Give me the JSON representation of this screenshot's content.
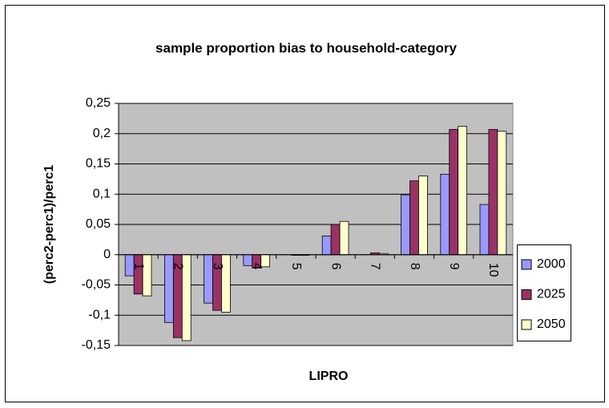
{
  "chart_data": {
    "type": "bar",
    "title": "sample proportion bias to household-category",
    "x_label": "LIPRO",
    "y_label": "(perc2-perc1)/perc1",
    "categories": [
      "1",
      "2",
      "3",
      "4",
      "5",
      "6",
      "7",
      "8",
      "9",
      "10"
    ],
    "series": [
      {
        "name": "2000",
        "color": "#9999ff",
        "values": [
          -0.035,
          -0.112,
          -0.08,
          -0.018,
          0,
          0.031,
          0,
          0.099,
          0.133,
          0.083
        ]
      },
      {
        "name": "2025",
        "color": "#993366",
        "values": [
          -0.065,
          -0.137,
          -0.092,
          -0.022,
          -0.001,
          0.05,
          0.003,
          0.122,
          0.207,
          0.207
        ]
      },
      {
        "name": "2050",
        "color": "#ffffcc",
        "values": [
          -0.068,
          -0.142,
          -0.095,
          -0.02,
          -0.001,
          0.055,
          0.002,
          0.13,
          0.212,
          0.204
        ]
      }
    ],
    "ylim": [
      -0.15,
      0.25
    ],
    "yticks": [
      {
        "value": -0.15,
        "label": "-0,15"
      },
      {
        "value": -0.1,
        "label": "-0,1"
      },
      {
        "value": -0.05,
        "label": "-0,05"
      },
      0,
      {
        "value": 0.05,
        "label": "0,05"
      },
      {
        "value": 0.1,
        "label": "0,1"
      },
      {
        "value": 0.15,
        "label": "0,15"
      },
      {
        "value": 0.2,
        "label": "0,2"
      },
      {
        "value": 0.25,
        "label": "0,25"
      }
    ],
    "grid": true,
    "legend": "right"
  }
}
